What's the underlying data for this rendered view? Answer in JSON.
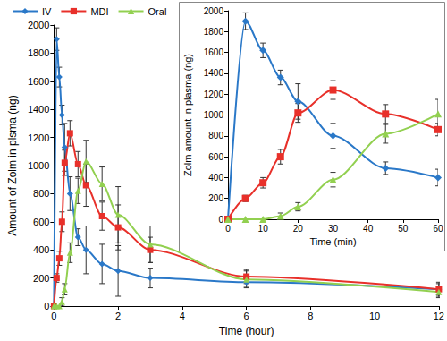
{
  "chart_data": [
    {
      "type": "line",
      "x_label": "Time (hour)",
      "y_label": "Amount of Zolm in plsma (ng)",
      "x": [
        0,
        0.083,
        0.167,
        0.25,
        0.333,
        0.5,
        0.75,
        1,
        1.5,
        2,
        3,
        6,
        12
      ],
      "series": [
        {
          "name": "IV",
          "color": "#2a78c8",
          "marker": "diamond",
          "values": [
            0,
            1900,
            1630,
            1360,
            1130,
            800,
            490,
            400,
            300,
            250,
            200,
            170,
            120
          ],
          "errors": [
            null,
            80,
            70,
            70,
            170,
            120,
            60,
            170,
            140,
            180,
            70,
            30,
            50
          ]
        },
        {
          "name": "MDI",
          "color": "#e8302a",
          "marker": "square",
          "values": [
            0,
            200,
            340,
            600,
            1020,
            1230,
            1010,
            860,
            640,
            560,
            400,
            210,
            120
          ],
          "errors": [
            null,
            30,
            50,
            70,
            90,
            90,
            90,
            150,
            100,
            160,
            90,
            50,
            40
          ]
        },
        {
          "name": "Oral",
          "color": "#92d050",
          "marker": "triangle",
          "values": [
            0,
            0,
            0,
            30,
            120,
            380,
            820,
            1030,
            870,
            650,
            440,
            190,
            100
          ],
          "errors": [
            null,
            null,
            null,
            30,
            40,
            70,
            90,
            150,
            120,
            200,
            130,
            60,
            40
          ]
        }
      ],
      "xlim": [
        0,
        12
      ],
      "xticks": [
        0,
        2,
        4,
        6,
        8,
        10,
        12
      ],
      "ylim": [
        0,
        2000
      ],
      "yticks": [
        0,
        200,
        400,
        600,
        800,
        1000,
        1200,
        1400,
        1600,
        1800,
        2000
      ],
      "grid": false,
      "legend": "top-left",
      "line_style": "smooth"
    },
    {
      "type": "line",
      "x_label": "Time (min)",
      "y_label": "Zolm amount in plasma (ng)",
      "x": [
        0,
        5,
        10,
        15,
        20,
        30,
        45,
        60
      ],
      "series": [
        {
          "name": "IV",
          "color": "#2a78c8",
          "marker": "diamond",
          "values": [
            0,
            1900,
            1620,
            1360,
            1130,
            800,
            490,
            400
          ],
          "errors": [
            null,
            80,
            70,
            70,
            170,
            120,
            60,
            80
          ]
        },
        {
          "name": "MDI",
          "color": "#e8302a",
          "marker": "square",
          "values": [
            0,
            200,
            350,
            600,
            1020,
            1240,
            1010,
            860
          ],
          "errors": [
            null,
            30,
            50,
            70,
            90,
            90,
            90,
            60
          ]
        },
        {
          "name": "Oral",
          "color": "#92d050",
          "marker": "triangle",
          "values": [
            0,
            0,
            0,
            30,
            120,
            380,
            820,
            1010
          ],
          "errors": [
            null,
            null,
            null,
            30,
            40,
            70,
            90,
            140
          ]
        }
      ],
      "xlim": [
        0,
        60
      ],
      "xticks": [
        0,
        10,
        20,
        30,
        40,
        50,
        60
      ],
      "ylim": [
        0,
        2000
      ],
      "yticks": [
        0,
        200,
        400,
        600,
        800,
        1000,
        1200,
        1400,
        1600,
        1800,
        2000
      ],
      "grid": false,
      "line_style": "smooth"
    }
  ]
}
